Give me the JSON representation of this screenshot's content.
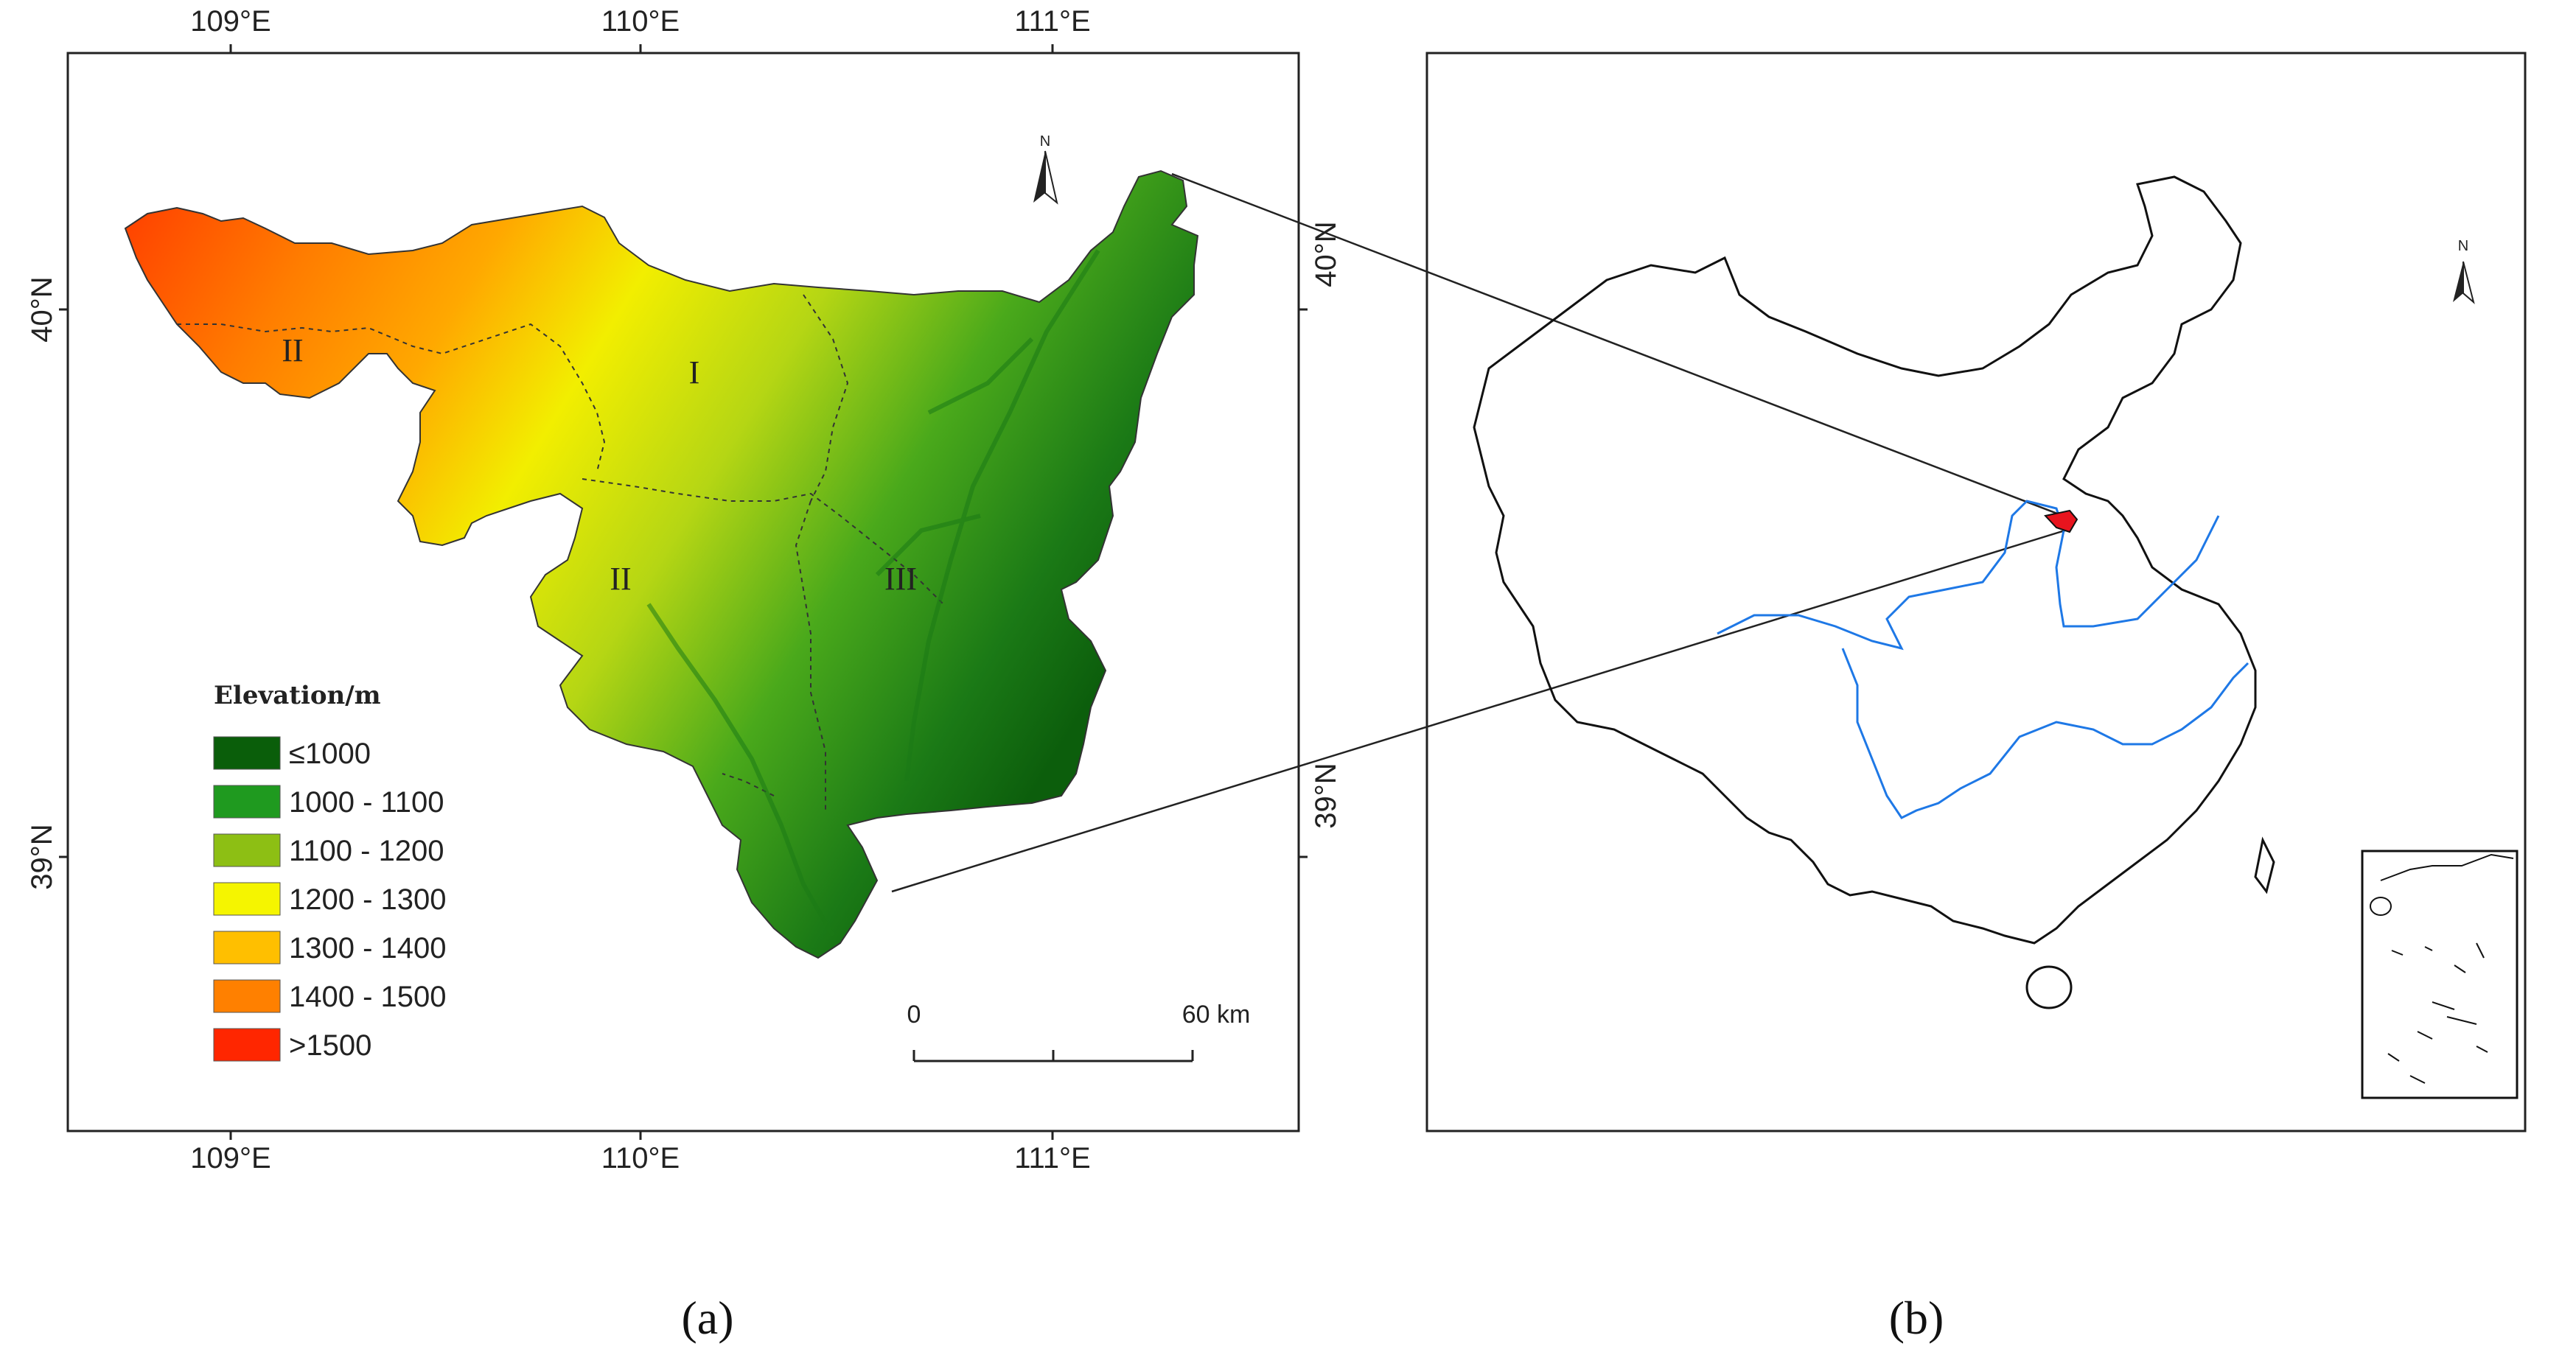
{
  "panel_a": {
    "top_ticks": [
      "109°E",
      "110°E",
      "111°E"
    ],
    "bottom_ticks": [
      "109°E",
      "110°E",
      "111°E"
    ],
    "left_ticks": [
      "40°N",
      "39°N"
    ],
    "right_ticks": [
      "40°N",
      "39°N"
    ],
    "region_labels": [
      "I",
      "II",
      "II",
      "III"
    ],
    "north_label": "N",
    "legend": {
      "title": "Elevation/m",
      "items": [
        {
          "label": "≤1000",
          "color": "#0a5e0a"
        },
        {
          "label": "1000 - 1100",
          "color": "#1f9a1f"
        },
        {
          "label": "1100 - 1200",
          "color": "#8dbf14"
        },
        {
          "label": "1200 - 1300",
          "color": "#f5f500"
        },
        {
          "label": "1300 - 1400",
          "color": "#ffbf00"
        },
        {
          "label": "1400 - 1500",
          "color": "#ff8000"
        },
        {
          "label": ">1500",
          "color": "#ff2600"
        }
      ]
    },
    "scale_bar": {
      "start": "0",
      "end": "60 km"
    }
  },
  "panel_b": {
    "north_label": "N",
    "river_color": "#1e78e6",
    "study_area_color": "#e8141e"
  },
  "captions": {
    "a": "(a)",
    "b": "(b)"
  }
}
